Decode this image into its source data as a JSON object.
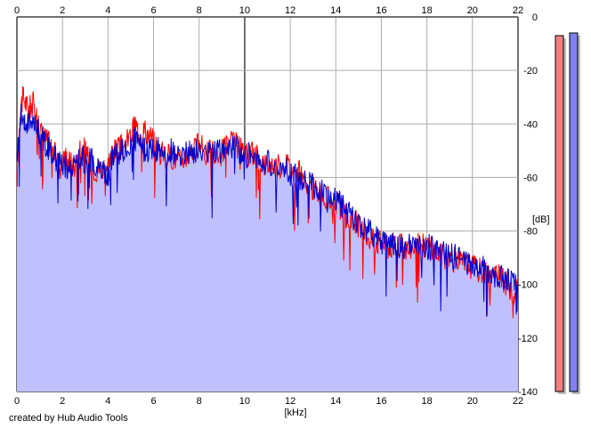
{
  "chart_data": {
    "type": "area",
    "title": "",
    "xlabel": "[kHz]",
    "ylabel": "[dB]",
    "xlim": [
      0,
      22
    ],
    "ylim": [
      -140,
      0
    ],
    "x_ticks": [
      0,
      2,
      4,
      6,
      8,
      10,
      12,
      14,
      16,
      18,
      20,
      22
    ],
    "y_ticks": [
      0,
      -20,
      -40,
      -60,
      -80,
      -100,
      -120,
      -140
    ],
    "grid": true,
    "series": [
      {
        "color": "#ff0000",
        "x": [
          0,
          0.15,
          0.3,
          0.5,
          0.7,
          0.9,
          1.1,
          1.3,
          1.5,
          1.7,
          1.9,
          2.1,
          2.3,
          2.5,
          2.8,
          3.0,
          3.2,
          3.5,
          3.8,
          4.0,
          4.2,
          4.4,
          4.7,
          5.0,
          5.2,
          5.4,
          5.6,
          5.9,
          6.2,
          6.5,
          6.8,
          7.1,
          7.4,
          7.7,
          8.0,
          8.3,
          8.6,
          8.9,
          9.2,
          9.5,
          9.8,
          10.0,
          10.3,
          10.6,
          10.9,
          11.2,
          11.5,
          11.8,
          12.1,
          12.4,
          12.7,
          13.0,
          13.3,
          13.6,
          13.9,
          14.2,
          14.5,
          14.8,
          15.1,
          15.4,
          15.7,
          16.0,
          16.3,
          16.6,
          16.9,
          17.2,
          17.5,
          17.8,
          18.1,
          18.4,
          18.7,
          19.0,
          19.3,
          19.6,
          19.9,
          20.2,
          20.5,
          20.8,
          21.1,
          21.4,
          21.6,
          21.8,
          22.0
        ],
        "values": [
          -62,
          -33,
          -30,
          -35,
          -32,
          -38,
          -44,
          -46,
          -48,
          -52,
          -56,
          -52,
          -54,
          -56,
          -48,
          -50,
          -55,
          -57,
          -56,
          -55,
          -50,
          -50,
          -48,
          -45,
          -40,
          -44,
          -42,
          -45,
          -50,
          -52,
          -52,
          -54,
          -52,
          -50,
          -48,
          -51,
          -50,
          -52,
          -48,
          -47,
          -49,
          -53,
          -50,
          -53,
          -55,
          -55,
          -56,
          -54,
          -58,
          -58,
          -63,
          -64,
          -66,
          -68,
          -69,
          -71,
          -76,
          -76,
          -79,
          -82,
          -84,
          -84,
          -86,
          -85,
          -86,
          -87,
          -85,
          -85,
          -86,
          -88,
          -89,
          -90,
          -91,
          -92,
          -93,
          -94,
          -95,
          -96,
          -97,
          -99,
          -100,
          -104,
          -100
        ]
      },
      {
        "color": "#0000cc",
        "x": [
          0,
          0.15,
          0.3,
          0.5,
          0.7,
          0.9,
          1.1,
          1.3,
          1.5,
          1.7,
          1.9,
          2.1,
          2.3,
          2.5,
          2.8,
          3.0,
          3.2,
          3.5,
          3.8,
          4.0,
          4.2,
          4.4,
          4.7,
          5.0,
          5.2,
          5.4,
          5.6,
          5.9,
          6.2,
          6.5,
          6.8,
          7.1,
          7.4,
          7.7,
          8.0,
          8.3,
          8.6,
          8.9,
          9.2,
          9.5,
          9.8,
          10.0,
          10.3,
          10.6,
          10.9,
          11.2,
          11.5,
          11.8,
          12.1,
          12.4,
          12.7,
          13.0,
          13.3,
          13.6,
          13.9,
          14.2,
          14.5,
          14.8,
          15.1,
          15.4,
          15.7,
          16.0,
          16.3,
          16.6,
          16.9,
          17.2,
          17.5,
          17.8,
          18.1,
          18.4,
          18.7,
          19.0,
          19.3,
          19.6,
          19.9,
          20.2,
          20.5,
          20.8,
          21.1,
          21.4,
          21.6,
          21.8,
          22.0
        ],
        "values": [
          -55,
          -36,
          -38,
          -40,
          -38,
          -42,
          -45,
          -48,
          -50,
          -53,
          -55,
          -55,
          -57,
          -56,
          -52,
          -54,
          -53,
          -56,
          -58,
          -60,
          -52,
          -51,
          -50,
          -47,
          -46,
          -48,
          -50,
          -50,
          -49,
          -52,
          -50,
          -53,
          -51,
          -50,
          -50,
          -50,
          -51,
          -50,
          -49,
          -48,
          -50,
          -52,
          -51,
          -54,
          -54,
          -56,
          -57,
          -57,
          -59,
          -60,
          -61,
          -63,
          -65,
          -67,
          -68,
          -70,
          -73,
          -75,
          -79,
          -80,
          -82,
          -84,
          -84,
          -85,
          -86,
          -86,
          -86,
          -86,
          -86,
          -87,
          -88,
          -89,
          -90,
          -91,
          -92,
          -94,
          -94,
          -95,
          -97,
          -98,
          -99,
          -98,
          -99
        ]
      }
    ],
    "level_meters": {
      "scale": "dB",
      "left": {
        "color": "#f08080",
        "value": -7
      },
      "right": {
        "color": "#8080f0",
        "value": -6
      }
    },
    "footer": "created by Hub Audio Tools"
  }
}
